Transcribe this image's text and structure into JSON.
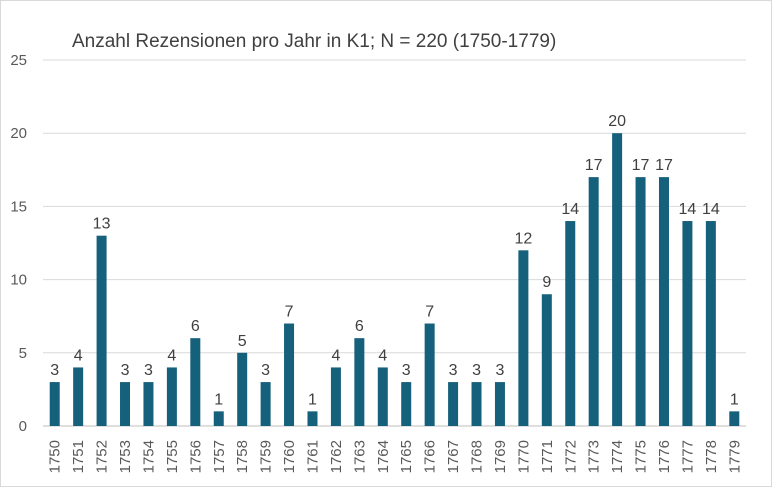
{
  "chart_data": {
    "type": "bar",
    "title": "Anzahl Rezensionen pro Jahr in K1; N = 220 (1750-1779)",
    "xlabel": "",
    "ylabel": "",
    "categories": [
      "1750",
      "1751",
      "1752",
      "1753",
      "1754",
      "1755",
      "1756",
      "1757",
      "1758",
      "1759",
      "1760",
      "1761",
      "1762",
      "1763",
      "1764",
      "1765",
      "1766",
      "1767",
      "1768",
      "1769",
      "1770",
      "1771",
      "1772",
      "1773",
      "1774",
      "1775",
      "1776",
      "1777",
      "1778",
      "1779"
    ],
    "values": [
      3,
      4,
      13,
      3,
      3,
      4,
      6,
      1,
      5,
      3,
      7,
      1,
      4,
      6,
      4,
      3,
      7,
      3,
      3,
      3,
      12,
      9,
      14,
      17,
      20,
      17,
      17,
      14,
      14,
      1
    ],
    "ylim": [
      0,
      25
    ],
    "yticks": [
      0,
      5,
      10,
      15,
      20,
      25
    ],
    "grid": true,
    "legend": "none",
    "bar_color": "#15607a",
    "data_labels": true
  }
}
